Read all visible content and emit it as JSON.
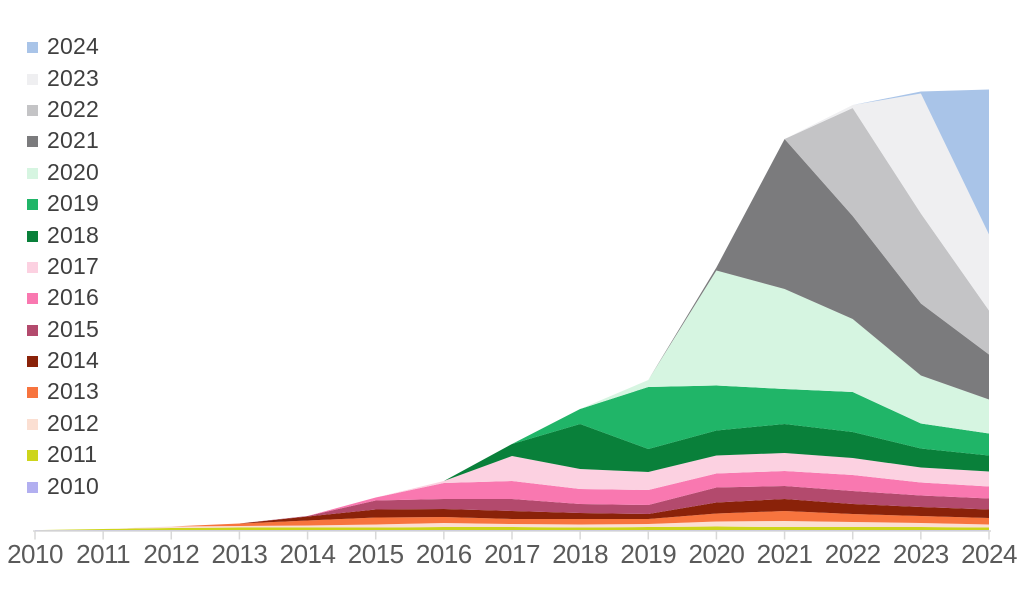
{
  "chart_data": {
    "type": "area",
    "stacked": true,
    "title": "",
    "xlabel": "",
    "ylabel": "",
    "x": [
      2010,
      2011,
      2012,
      2013,
      2014,
      2015,
      2016,
      2017,
      2018,
      2019,
      2020,
      2021,
      2022,
      2023,
      2024
    ],
    "x_labels": [
      "2010",
      "2011",
      "2012",
      "2013",
      "2014",
      "2015",
      "2016",
      "2017",
      "2018",
      "2019",
      "2020",
      "2021",
      "2022",
      "2023",
      "2024"
    ],
    "layout": {
      "grid": false,
      "y_axis_visible": false,
      "x_axis_color": "#d8d8d8",
      "x_label_color": "#5a5a5a",
      "legend_position": "top-left",
      "legend_order": "newest-first",
      "background": "#ffffff"
    },
    "series": [
      {
        "name": "2010",
        "color": "#b2aff0",
        "values": [
          0.4,
          0.5,
          0.5,
          0.5,
          0.5,
          0.5,
          0.5,
          0.5,
          0.5,
          0.5,
          0.5,
          0.5,
          0.5,
          0.5,
          0.5
        ]
      },
      {
        "name": "2011",
        "color": "#cdd51b",
        "values": [
          0,
          1,
          2,
          2.5,
          2.5,
          2.5,
          3,
          3,
          2.5,
          3,
          3.5,
          3,
          3,
          3,
          2.5
        ]
      },
      {
        "name": "2012",
        "color": "#fbdfd2",
        "values": [
          0,
          0,
          1.5,
          1.5,
          2,
          3,
          4,
          3,
          3,
          3,
          5,
          6,
          5,
          4,
          3
        ]
      },
      {
        "name": "2013",
        "color": "#f7743e",
        "values": [
          0,
          0,
          0,
          2.5,
          5,
          7,
          6,
          5,
          5.5,
          5,
          8,
          10,
          8,
          7,
          6.5
        ]
      },
      {
        "name": "2014",
        "color": "#8a2209",
        "values": [
          0,
          0,
          0,
          0,
          4,
          8,
          8,
          8,
          6,
          5,
          11,
          12,
          10,
          9,
          8.5
        ]
      },
      {
        "name": "2015",
        "color": "#b34a6d",
        "values": [
          0,
          0,
          0,
          0,
          0.5,
          9,
          10,
          12,
          9,
          9,
          15,
          13,
          13,
          11.5,
          11
        ]
      },
      {
        "name": "2016",
        "color": "#f978b0",
        "values": [
          0,
          0,
          0,
          0,
          0,
          3,
          16,
          18,
          15,
          15,
          14,
          15,
          16,
          13,
          12
        ]
      },
      {
        "name": "2017",
        "color": "#fcd1e1",
        "values": [
          0,
          0,
          0,
          0,
          0,
          0,
          2,
          25,
          20,
          18,
          18,
          18,
          17,
          15,
          15
        ]
      },
      {
        "name": "2018",
        "color": "#09803a",
        "values": [
          0,
          0,
          0,
          0,
          0,
          0,
          0,
          12,
          45,
          23,
          25,
          29,
          26,
          19,
          16
        ]
      },
      {
        "name": "2019",
        "color": "#20b568",
        "values": [
          0,
          0,
          0,
          0,
          0,
          0,
          0,
          0,
          15,
          62,
          45,
          35,
          40,
          25,
          22
        ]
      },
      {
        "name": "2020",
        "color": "#d6f5e1",
        "values": [
          0,
          0,
          0,
          0,
          0,
          0,
          0,
          0,
          0,
          7,
          115,
          100,
          73,
          48,
          34
        ]
      },
      {
        "name": "2021",
        "color": "#7b7b7d",
        "values": [
          0,
          0,
          0,
          0,
          0,
          0,
          0,
          0,
          0,
          0,
          3,
          150,
          103,
          72,
          45
        ]
      },
      {
        "name": "2022",
        "color": "#c4c4c6",
        "values": [
          0,
          0,
          0,
          0,
          0,
          0,
          0,
          0,
          0,
          0,
          0,
          0,
          108,
          90,
          44
        ]
      },
      {
        "name": "2023",
        "color": "#efeff1",
        "values": [
          0,
          0,
          0,
          0,
          0,
          0,
          0,
          0,
          0,
          0,
          0,
          0,
          3,
          120,
          76
        ]
      },
      {
        "name": "2024",
        "color": "#a9c4e8",
        "values": [
          0,
          0,
          0,
          0,
          0,
          0,
          0,
          0,
          0,
          0,
          0,
          0,
          0,
          2,
          145
        ]
      }
    ]
  }
}
